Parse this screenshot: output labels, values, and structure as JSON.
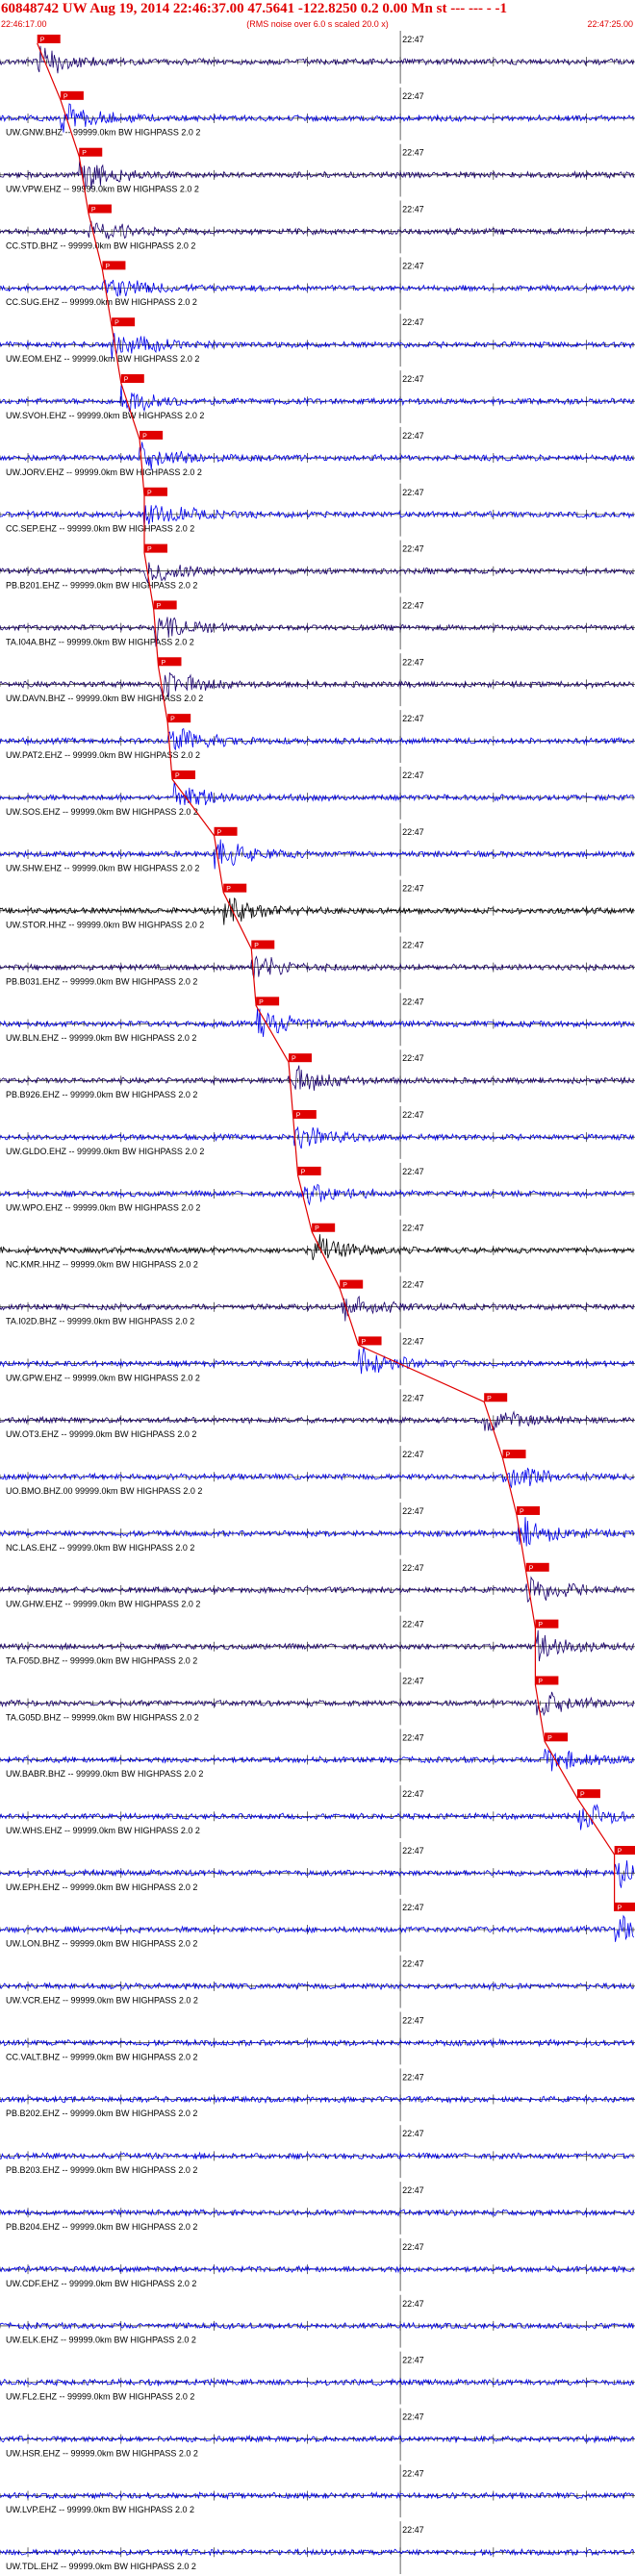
{
  "chart_data": {
    "type": "seismogram",
    "title": "60848742 UW Aug 19, 2014 22:46:37.00   47.5641 -122.8250  0.2 0.00 Mn st --- --- - -1",
    "subtitle": "(RMS noise over 6.0 s scaled 20.0 x)",
    "start_time": "22:46:17.00",
    "end_time": "22:47:25.00",
    "minute_label": "22:47",
    "pick_label": "P",
    "colors": {
      "header": "#e00000",
      "pick": "#e00000",
      "blue": "#0000ee",
      "dark": "#1a006e",
      "black": "#000000",
      "axis": "#000000"
    },
    "traces": [
      {
        "label": "",
        "color": "dark",
        "pick_offset_s": 4.0
      },
      {
        "label": "UW.GNW.BHZ -- 99999.0km BW  HIGHPASS  2.0  2",
        "color": "blue",
        "pick_offset_s": 6.5
      },
      {
        "label": "UW.VPW.EHZ -- 99999.0km BW  HIGHPASS  2.0  2",
        "color": "dark",
        "pick_offset_s": 8.5
      },
      {
        "label": "CC.STD.BHZ -- 99999.0km BW  HIGHPASS  2.0  2",
        "color": "dark",
        "pick_offset_s": 9.5
      },
      {
        "label": "CC.SUG.EHZ -- 99999.0km BW  HIGHPASS  2.0  2",
        "color": "blue",
        "pick_offset_s": 11.0
      },
      {
        "label": "UW.EOM.EHZ -- 99999.0km BW  HIGHPASS  2.0  2",
        "color": "blue",
        "pick_offset_s": 12.0
      },
      {
        "label": "UW.SVOH.EHZ -- 99999.0km BW  HIGHPASS  2.0  2",
        "color": "blue",
        "pick_offset_s": 13.0
      },
      {
        "label": "UW.JORV.EHZ -- 99999.0km BW  HIGHPASS  2.0  2",
        "color": "blue",
        "pick_offset_s": 15.0
      },
      {
        "label": "CC.SEP.EHZ -- 99999.0km BW  HIGHPASS  2.0  2",
        "color": "blue",
        "pick_offset_s": 15.5
      },
      {
        "label": "PB.B201.EHZ -- 99999.0km BW  HIGHPASS  2.0  2",
        "color": "dark",
        "pick_offset_s": 15.5
      },
      {
        "label": "TA.I04A.BHZ -- 99999.0km BW  HIGHPASS  2.0  2",
        "color": "dark",
        "pick_offset_s": 16.5
      },
      {
        "label": "UW.DAVN.BHZ -- 99999.0km BW  HIGHPASS  2.0  2",
        "color": "dark",
        "pick_offset_s": 17.0
      },
      {
        "label": "UW.PAT2.EHZ -- 99999.0km BW  HIGHPASS  2.0  2",
        "color": "blue",
        "pick_offset_s": 18.0
      },
      {
        "label": "UW.SOS.EHZ -- 99999.0km BW  HIGHPASS  2.0  2",
        "color": "blue",
        "pick_offset_s": 18.5
      },
      {
        "label": "UW.SHW.EHZ -- 99999.0km BW  HIGHPASS  2.0  2",
        "color": "blue",
        "pick_offset_s": 23.0
      },
      {
        "label": "UW.STOR.HHZ -- 99999.0km BW  HIGHPASS  2.0  2",
        "color": "black",
        "pick_offset_s": 24.0
      },
      {
        "label": "PB.B031.EHZ -- 99999.0km BW  HIGHPASS  2.0  2",
        "color": "dark",
        "pick_offset_s": 27.0
      },
      {
        "label": "UW.BLN.EHZ -- 99999.0km BW  HIGHPASS  2.0  2",
        "color": "blue",
        "pick_offset_s": 27.5
      },
      {
        "label": "PB.B926.EHZ -- 99999.0km BW  HIGHPASS  2.0  2",
        "color": "dark",
        "pick_offset_s": 31.0
      },
      {
        "label": "UW.GLDO.EHZ -- 99999.0km BW  HIGHPASS  2.0  2",
        "color": "blue",
        "pick_offset_s": 31.5
      },
      {
        "label": "UW.WPO.EHZ -- 99999.0km BW  HIGHPASS  2.0  2",
        "color": "blue",
        "pick_offset_s": 32.0
      },
      {
        "label": "NC.KMR.HHZ -- 99999.0km BW  HIGHPASS  2.0  2",
        "color": "black",
        "pick_offset_s": 33.5
      },
      {
        "label": "TA.I02D.BHZ -- 99999.0km BW  HIGHPASS  2.0  2",
        "color": "dark",
        "pick_offset_s": 36.5
      },
      {
        "label": "UW.GPW.EHZ -- 99999.0km BW  HIGHPASS  2.0  2",
        "color": "blue",
        "pick_offset_s": 38.5
      },
      {
        "label": "UW.OT3.EHZ -- 99999.0km BW  HIGHPASS  2.0  2",
        "color": "dark",
        "pick_offset_s": 52.0
      },
      {
        "label": "UO.BMO.BHZ.00 99999.0km BW  HIGHPASS  2.0  2",
        "color": "blue",
        "pick_offset_s": 54.0
      },
      {
        "label": "NC.LAS.EHZ -- 99999.0km BW  HIGHPASS  2.0  2",
        "color": "blue",
        "pick_offset_s": 55.5
      },
      {
        "label": "UW.GHW.EHZ -- 99999.0km BW  HIGHPASS  2.0  2",
        "color": "dark",
        "pick_offset_s": 56.5
      },
      {
        "label": "TA.F05D.BHZ -- 99999.0km BW  HIGHPASS  2.0  2",
        "color": "dark",
        "pick_offset_s": 57.5
      },
      {
        "label": "TA.G05D.BHZ -- 99999.0km BW  HIGHPASS  2.0  2",
        "color": "dark",
        "pick_offset_s": 57.5
      },
      {
        "label": "UW.BABR.BHZ -- 99999.0km BW  HIGHPASS  2.0  2",
        "color": "blue",
        "pick_offset_s": 58.5
      },
      {
        "label": "UW.WHS.EHZ -- 99999.0km BW  HIGHPASS  2.0  2",
        "color": "blue",
        "pick_offset_s": 62.0
      },
      {
        "label": "UW.EPH.EHZ -- 99999.0km BW  HIGHPASS  2.0  2",
        "color": "blue",
        "pick_offset_s": 66.0
      },
      {
        "label": "UW.LON.BHZ -- 99999.0km BW  HIGHPASS  2.0  2",
        "color": "blue",
        "pick_offset_s": 66.0
      },
      {
        "label": "UW.VCR.EHZ -- 99999.0km BW  HIGHPASS  2.0  2",
        "color": "blue"
      },
      {
        "label": "CC.VALT.BHZ -- 99999.0km BW  HIGHPASS  2.0  2",
        "color": "blue"
      },
      {
        "label": "PB.B202.EHZ -- 99999.0km BW  HIGHPASS  2.0  2",
        "color": "blue"
      },
      {
        "label": "PB.B203.EHZ -- 99999.0km BW  HIGHPASS  2.0  2",
        "color": "blue"
      },
      {
        "label": "PB.B204.EHZ -- 99999.0km BW  HIGHPASS  2.0  2",
        "color": "blue"
      },
      {
        "label": "UW.CDF.EHZ -- 99999.0km BW  HIGHPASS  2.0  2",
        "color": "blue"
      },
      {
        "label": "UW.ELK.EHZ -- 99999.0km BW  HIGHPASS  2.0  2",
        "color": "blue"
      },
      {
        "label": "UW.FL2.EHZ -- 99999.0km BW  HIGHPASS  2.0  2",
        "color": "blue"
      },
      {
        "label": "UW.HSR.EHZ -- 99999.0km BW  HIGHPASS  2.0  2",
        "color": "blue"
      },
      {
        "label": "UW.LVP.EHZ -- 99999.0km BW  HIGHPASS  2.0  2",
        "color": "blue"
      },
      {
        "label": "UW.TDL.EHZ -- 99999.0km BW  HIGHPASS  2.0  2",
        "color": "blue"
      }
    ]
  }
}
